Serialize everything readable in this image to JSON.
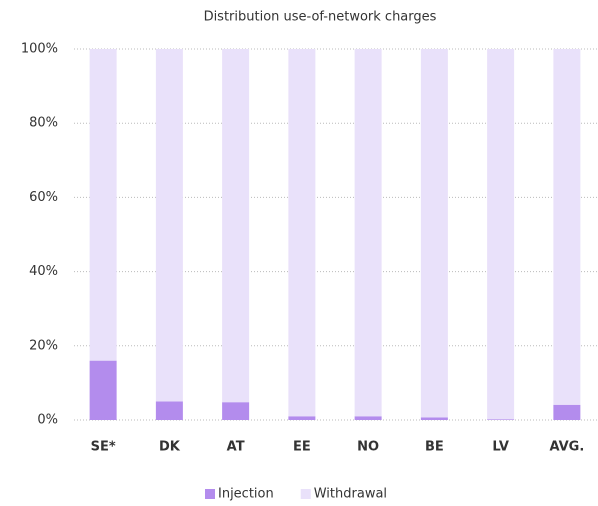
{
  "chart_data": {
    "type": "stacked_bar",
    "title": "Distribution use-of-network charges",
    "categories": [
      "SE*",
      "DK",
      "AT",
      "EE",
      "NO",
      "BE",
      "LV",
      "AVG."
    ],
    "series": [
      {
        "name": "Injection",
        "color": "#b38ced",
        "values": [
          16,
          5,
          4.8,
          1,
          1,
          0.7,
          0.2,
          4.1
        ]
      },
      {
        "name": "Withdrawal",
        "color": "#e9e1fa",
        "values": [
          84,
          95,
          95.2,
          99,
          99,
          99.3,
          99.8,
          95.9
        ]
      }
    ],
    "ylim": [
      0,
      100
    ],
    "yticks": [
      {
        "value": 0,
        "label": "0%"
      },
      {
        "value": 20,
        "label": "20%"
      },
      {
        "value": 40,
        "label": "40%"
      },
      {
        "value": 60,
        "label": "60%"
      },
      {
        "value": 80,
        "label": "80%"
      },
      {
        "value": 100,
        "label": "100%"
      }
    ],
    "grid": true,
    "legend": "bottom"
  }
}
